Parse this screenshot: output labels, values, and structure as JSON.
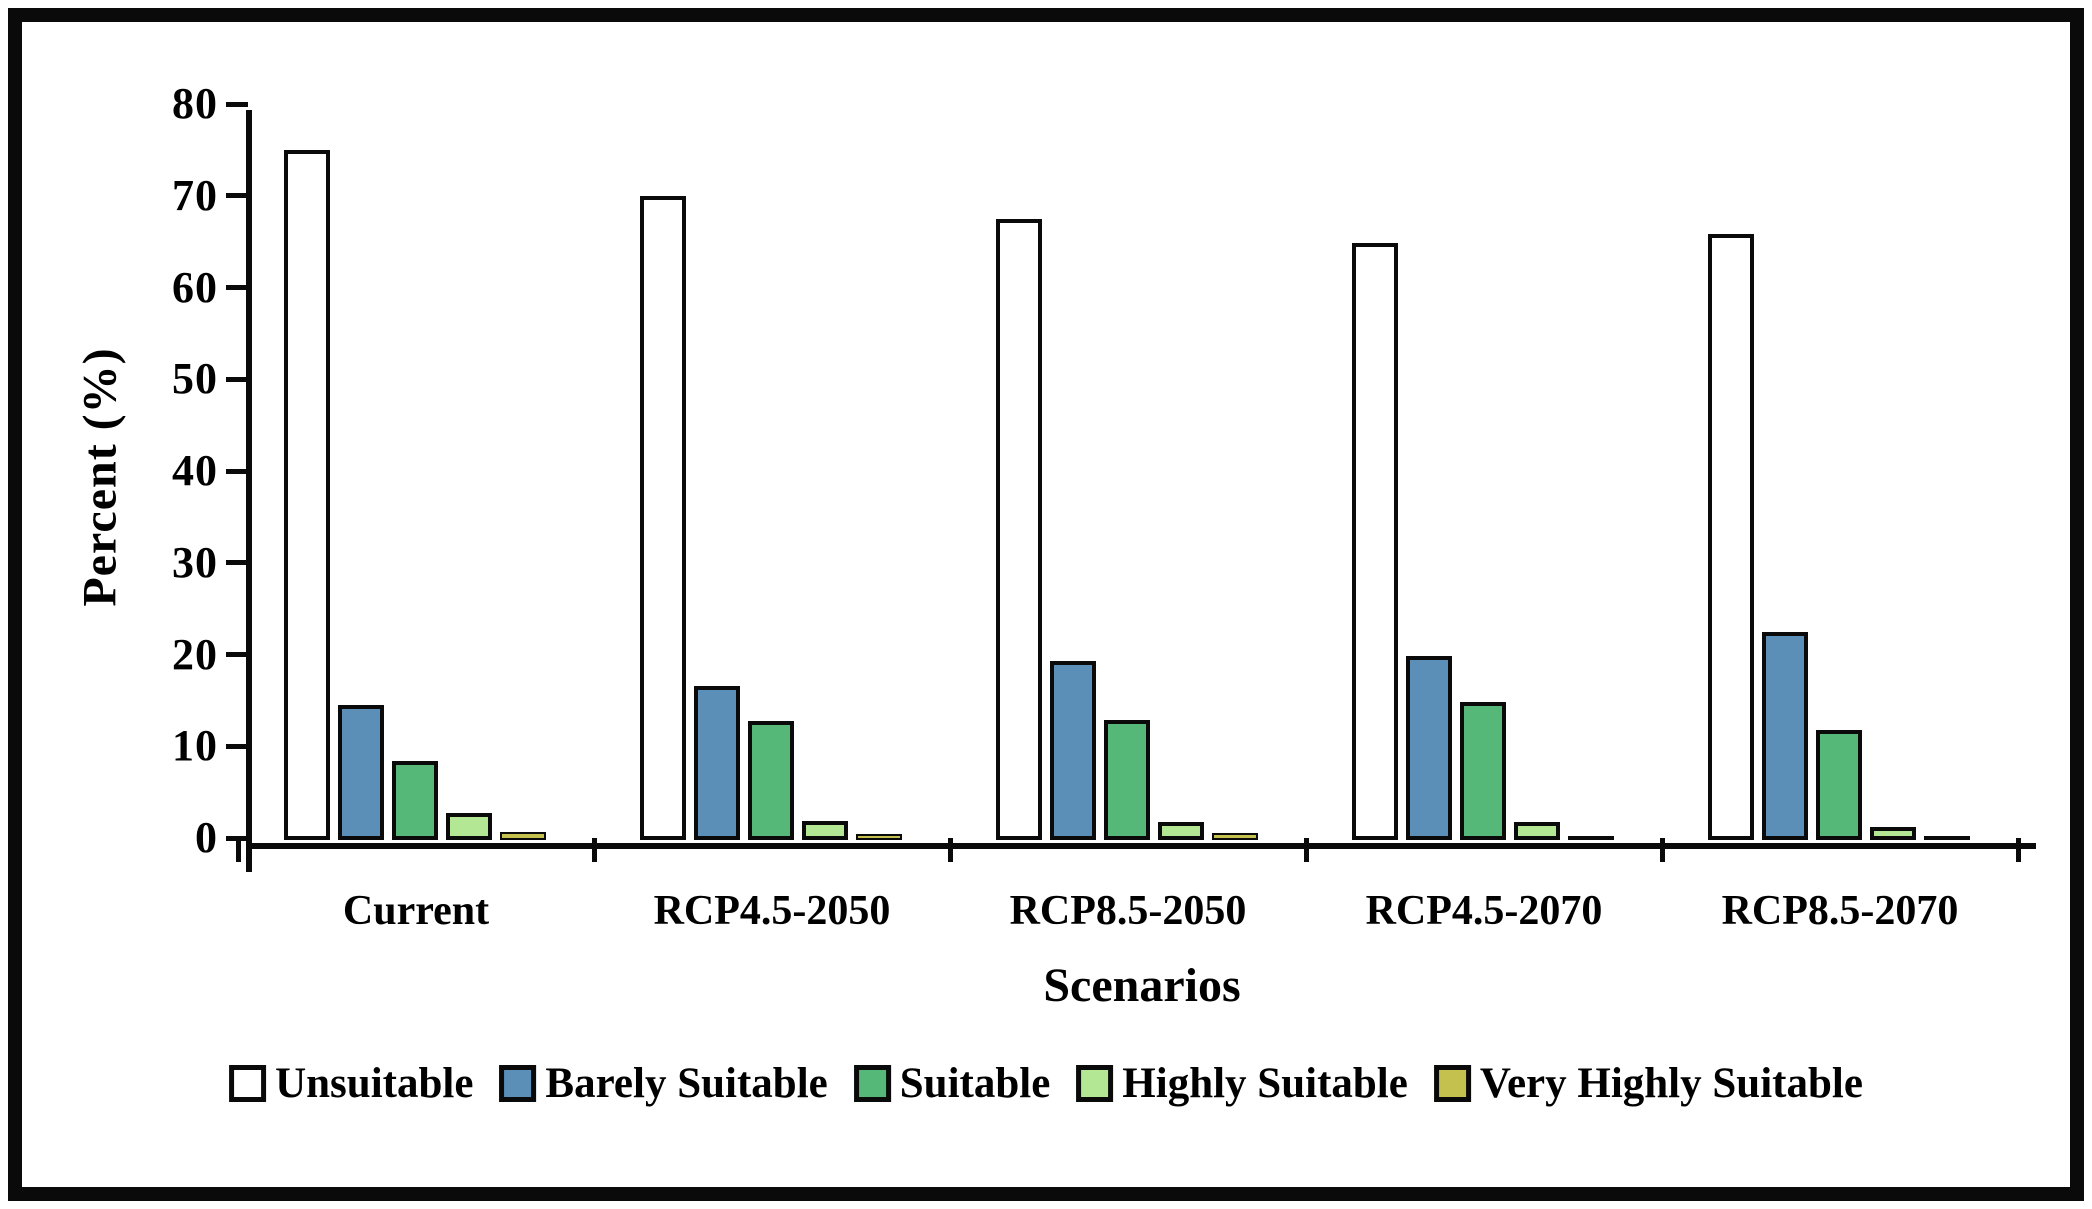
{
  "chart_data": {
    "type": "bar",
    "title": "",
    "xlabel": "Scenarios",
    "ylabel": "Percent (%)",
    "ylim": [
      0,
      80
    ],
    "yticks": [
      0,
      10,
      20,
      30,
      40,
      50,
      60,
      70,
      80
    ],
    "grid": false,
    "legend_position": "bottom",
    "categories": [
      "Current",
      "RCP4.5-2050",
      "RCP8.5-2050",
      "RCP4.5-2070",
      "RCP8.5-2070"
    ],
    "series": [
      {
        "name": "Unsuitable",
        "color": "#ffffff",
        "values": [
          74.8,
          69.8,
          67.2,
          64.6,
          65.6
        ]
      },
      {
        "name": "Barely Suitable",
        "color": "#5b8fb8",
        "values": [
          14.3,
          16.3,
          19.1,
          19.6,
          22.2
        ]
      },
      {
        "name": "Suitable",
        "color": "#55b878",
        "values": [
          8.2,
          12.5,
          12.6,
          14.6,
          11.5
        ]
      },
      {
        "name": "Highly Suitable",
        "color": "#b3e794",
        "values": [
          2.5,
          1.6,
          1.5,
          1.5,
          1.0
        ]
      },
      {
        "name": "Very Highly Suitable",
        "color": "#c4c14e",
        "values": [
          0.4,
          0.25,
          0.3,
          0.05,
          0.05
        ]
      }
    ],
    "bar_border_color": "#0a0a0a",
    "axis_color": "#0a0a0a"
  }
}
